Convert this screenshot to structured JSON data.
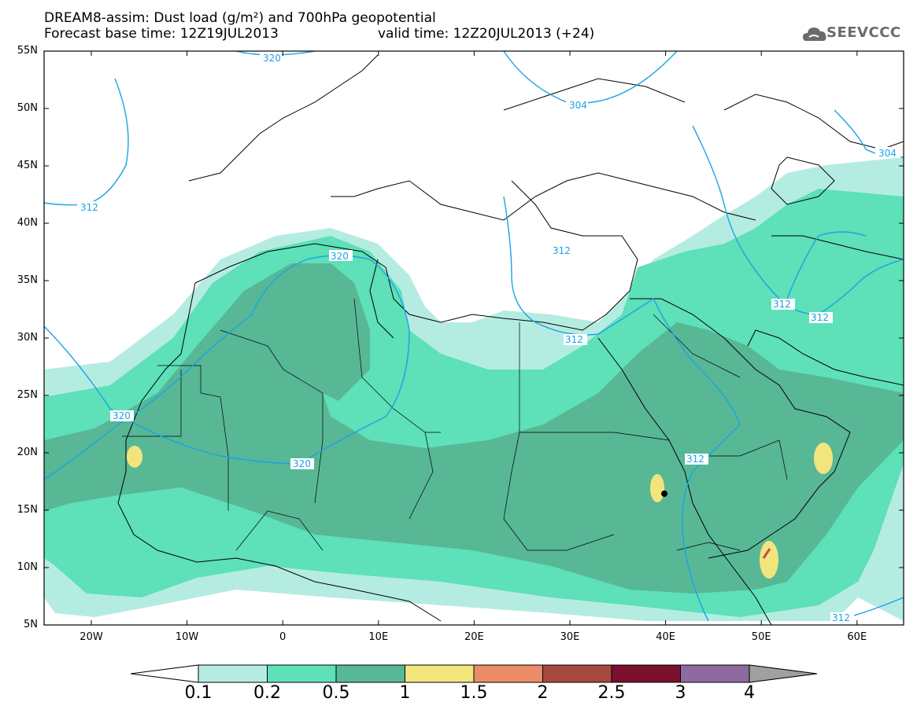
{
  "header": {
    "title_line1": "DREAM8-assim: Dust load (g/m²) and 700hPa geopotential",
    "title_line2": "Forecast base time: 12Z19JUL2013",
    "valid_time": "valid time: 12Z20JUL2013 (+24)",
    "logo_text": "SEEVCCC",
    "logo_icon": "cloud-icon"
  },
  "map": {
    "lat_labels": [
      "55N",
      "50N",
      "45N",
      "40N",
      "35N",
      "30N",
      "25N",
      "20N",
      "15N",
      "10N",
      "5N"
    ],
    "lon_labels": [
      "20W",
      "10W",
      "0",
      "10E",
      "20E",
      "30E",
      "40E",
      "50E",
      "60E"
    ],
    "contour_labels": [
      "320",
      "304",
      "304",
      "312",
      "312",
      "320",
      "312",
      "312",
      "312",
      "312",
      "320",
      "320",
      "312",
      "312"
    ],
    "colors": {
      "land_border": "#000000",
      "contour": "#1aa3e6"
    }
  },
  "colorbar": {
    "tick_labels": [
      "0.1",
      "0.2",
      "0.5",
      "1",
      "1.5",
      "2",
      "2.5",
      "3",
      "4"
    ],
    "colors": [
      "#ffffff",
      "#b5ece2",
      "#5ee0b8",
      "#58b795",
      "#f2e57c",
      "#eb8c69",
      "#a64a3f",
      "#7a0f2e",
      "#8d6aa0",
      "#a0a0a0"
    ]
  }
}
